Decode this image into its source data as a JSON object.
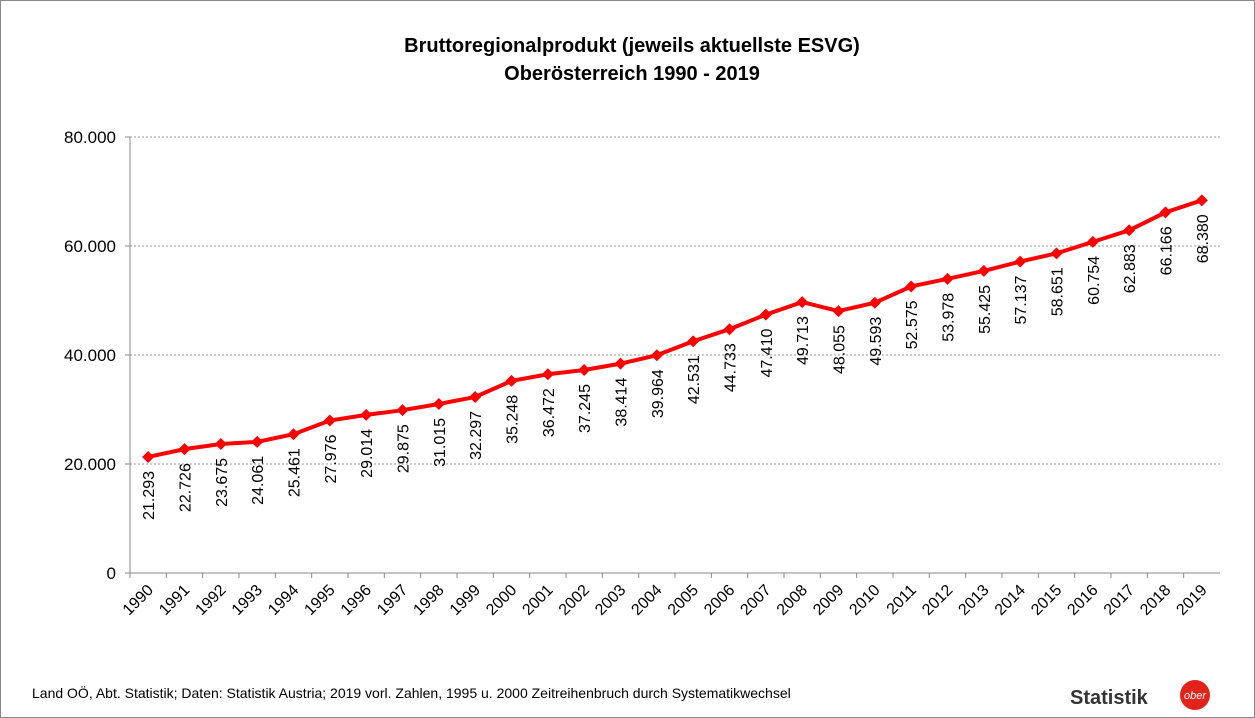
{
  "chart_data": {
    "type": "line",
    "title": "Bruttoregionalprodukt (jeweils aktuellste ESVG)",
    "subtitle": "Oberösterreich 1990 - 2019",
    "categories": [
      "1990",
      "1991",
      "1992",
      "1993",
      "1994",
      "1995",
      "1996",
      "1997",
      "1998",
      "1999",
      "2000",
      "2001",
      "2002",
      "2003",
      "2004",
      "2005",
      "2006",
      "2007",
      "2008",
      "2009",
      "2010",
      "2011",
      "2012",
      "2013",
      "2014",
      "2015",
      "2016",
      "2017",
      "2018",
      "2019"
    ],
    "series": [
      {
        "color": "#ff0000",
        "values": [
          21293,
          22726,
          23675,
          24061,
          25461,
          27976,
          29014,
          29875,
          31015,
          32297,
          35248,
          36472,
          37245,
          38414,
          39964,
          42531,
          44733,
          47410,
          49713,
          48055,
          49593,
          52575,
          53978,
          55425,
          57137,
          58651,
          60754,
          62883,
          66166,
          68380
        ],
        "value_labels": [
          "21.293",
          "22.726",
          "23.675",
          "24.061",
          "25.461",
          "27.976",
          "29.014",
          "29.875",
          "31.015",
          "32.297",
          "35.248",
          "36.472",
          "37.245",
          "38.414",
          "39.964",
          "42.531",
          "44.733",
          "47.410",
          "49.713",
          "48.055",
          "49.593",
          "52.575",
          "53.978",
          "55.425",
          "57.137",
          "58.651",
          "60.754",
          "62.883",
          "66.166",
          "68.380"
        ]
      }
    ],
    "ylim": [
      0,
      80000
    ],
    "yticks": [
      0,
      {
        "value": 20000,
        "label": "20.000"
      },
      {
        "value": 40000,
        "label": "40.000"
      },
      {
        "value": 60000,
        "label": "60.000"
      },
      {
        "value": 80000,
        "label": "80.000"
      }
    ],
    "grid": true,
    "source": "Land OÖ, Abt. Statistik; Daten: Statistik Austria; 2019 vorl. Zahlen, 1995 u. 2000 Zeitreihenbruch durch Systematikwechsel",
    "logo_text": "Statistik",
    "logo_badge": "ober"
  }
}
